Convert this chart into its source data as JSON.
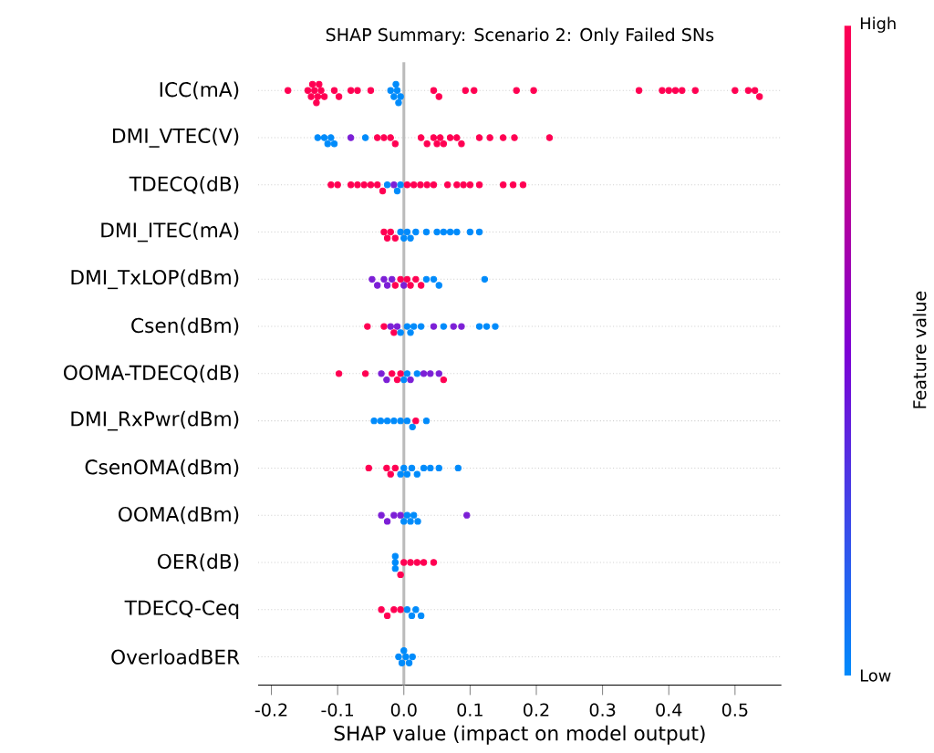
{
  "chart_data": {
    "type": "scatter",
    "orientation": "horizontal",
    "title": "SHAP Summary: Scenario 2: Only Failed SNs",
    "xlabel": "SHAP value (impact on model output)",
    "clabel": "Feature value",
    "categories": [
      "ICC(mA)",
      "DMI_VTEC(V)",
      "TDECQ(dB)",
      "DMI_ITEC(mA)",
      "DMI_TxLOP(dBm)",
      "Csen(dBm)",
      "OOMA-TDECQ(dB)",
      "DMI_RxPwr(dBm)",
      "CsenOMA(dBm)",
      "OOMA(dBm)",
      "OER(dB)",
      "TDECQ-Ceq",
      "OverloadBER"
    ],
    "xlim": [
      -0.22,
      0.57
    ],
    "xticks": [
      -0.2,
      -0.1,
      {
        "value": 0,
        "label": "0.0"
      },
      0.1,
      0.2,
      0.3,
      0.4,
      0.5
    ],
    "annotations": [
      "High",
      "Low"
    ],
    "grid": "y",
    "marker": "circle",
    "ref_lines": [
      {
        "axis": "x",
        "value": 0
      }
    ],
    "series": [
      {
        "x": [
          "ICC(mA)",
          "ICC(mA)",
          "ICC(mA)",
          "ICC(mA)",
          "ICC(mA)",
          "ICC(mA)",
          "ICC(mA)",
          "ICC(mA)",
          "ICC(mA)",
          "ICC(mA)",
          "ICC(mA)",
          "ICC(mA)",
          "ICC(mA)",
          "ICC(mA)",
          "ICC(mA)",
          "ICC(mA)",
          "ICC(mA)",
          "ICC(mA)",
          "ICC(mA)",
          "ICC(mA)",
          "ICC(mA)",
          "ICC(mA)",
          "ICC(mA)",
          "ICC(mA)",
          "ICC(mA)",
          "ICC(mA)",
          "ICC(mA)",
          "ICC(mA)",
          "ICC(mA)",
          "ICC(mA)",
          "ICC(mA)",
          "ICC(mA)",
          "ICC(mA)",
          "ICC(mA)",
          "ICC(mA)",
          "ICC(mA)",
          "ICC(mA)"
        ],
        "values": [
          -0.175,
          -0.145,
          -0.14,
          -0.138,
          -0.135,
          -0.132,
          -0.13,
          -0.128,
          -0.125,
          -0.12,
          -0.105,
          -0.098,
          -0.08,
          -0.07,
          -0.05,
          -0.02,
          -0.015,
          -0.012,
          -0.01,
          -0.008,
          -0.005,
          0.045,
          0.053,
          0.093,
          0.106,
          0.17,
          0.196,
          0.355,
          0.39,
          0.4,
          0.41,
          0.42,
          0.44,
          0.5,
          0.52,
          0.53,
          0.537
        ],
        "colors": [
          "#ff0052",
          "#ff0052",
          "#ff0052",
          "#ff0052",
          "#ff0052",
          "#ff0052",
          "#ff0052",
          "#ff0052",
          "#ff0052",
          "#ff0052",
          "#ff0052",
          "#ff0052",
          "#ff0052",
          "#ff0052",
          "#ff0052",
          "#008bfb",
          "#008bfb",
          "#008bfb",
          "#008bfb",
          "#008bfb",
          "#008bfb",
          "#ff0052",
          "#ff0052",
          "#ff0052",
          "#ff0052",
          "#ff0052",
          "#ff0052",
          "#ff0052",
          "#ff0052",
          "#ff0052",
          "#ff0052",
          "#ff0052",
          "#ff0052",
          "#ff0052",
          "#ff0052",
          "#ff0052",
          "#ff0052"
        ]
      },
      {
        "x": [
          "DMI_VTEC(V)",
          "DMI_VTEC(V)",
          "DMI_VTEC(V)",
          "DMI_VTEC(V)",
          "DMI_VTEC(V)",
          "DMI_VTEC(V)",
          "DMI_VTEC(V)",
          "DMI_VTEC(V)",
          "DMI_VTEC(V)",
          "DMI_VTEC(V)",
          "DMI_VTEC(V)",
          "DMI_VTEC(V)",
          "DMI_VTEC(V)",
          "DMI_VTEC(V)",
          "DMI_VTEC(V)",
          "DMI_VTEC(V)",
          "DMI_VTEC(V)",
          "DMI_VTEC(V)",
          "DMI_VTEC(V)",
          "DMI_VTEC(V)",
          "DMI_VTEC(V)",
          "DMI_VTEC(V)",
          "DMI_VTEC(V)",
          "DMI_VTEC(V)",
          "DMI_VTEC(V)"
        ],
        "values": [
          -0.13,
          -0.12,
          -0.115,
          -0.11,
          -0.105,
          -0.08,
          -0.058,
          -0.04,
          -0.03,
          -0.02,
          -0.013,
          0.026,
          0.035,
          0.045,
          0.05,
          0.055,
          0.06,
          0.07,
          0.08,
          0.087,
          0.114,
          0.13,
          0.15,
          0.167,
          0.22
        ],
        "colors": [
          "#008bfb",
          "#008bfb",
          "#008bfb",
          "#008bfb",
          "#008bfb",
          "#7c1fd6",
          "#008bfb",
          "#ff0052",
          "#ff0052",
          "#ff0052",
          "#ff0052",
          "#ff0052",
          "#ff0052",
          "#ff0052",
          "#ff0052",
          "#ff0052",
          "#ff0052",
          "#ff0052",
          "#ff0052",
          "#ff0052",
          "#ff0052",
          "#ff0052",
          "#ff0052",
          "#ff0052",
          "#ff0052"
        ]
      },
      {
        "x": [
          "TDECQ(dB)",
          "TDECQ(dB)",
          "TDECQ(dB)",
          "TDECQ(dB)",
          "TDECQ(dB)",
          "TDECQ(dB)",
          "TDECQ(dB)",
          "TDECQ(dB)",
          "TDECQ(dB)",
          "TDECQ(dB)",
          "TDECQ(dB)",
          "TDECQ(dB)",
          "TDECQ(dB)",
          "TDECQ(dB)",
          "TDECQ(dB)",
          "TDECQ(dB)",
          "TDECQ(dB)",
          "TDECQ(dB)",
          "TDECQ(dB)",
          "TDECQ(dB)",
          "TDECQ(dB)",
          "TDECQ(dB)",
          "TDECQ(dB)",
          "TDECQ(dB)",
          "TDECQ(dB)"
        ],
        "values": [
          -0.11,
          -0.1,
          -0.08,
          -0.07,
          -0.06,
          -0.05,
          -0.04,
          -0.032,
          -0.025,
          -0.015,
          -0.01,
          -0.005,
          0.005,
          0.015,
          0.025,
          0.035,
          0.045,
          0.066,
          0.08,
          0.09,
          0.1,
          0.114,
          0.15,
          0.165,
          0.18
        ],
        "colors": [
          "#ff0052",
          "#ff0052",
          "#ff0052",
          "#ff0052",
          "#ff0052",
          "#ff0052",
          "#ff0052",
          "#ff0052",
          "#008bfb",
          "#7c1fd6",
          "#008bfb",
          "#008bfb",
          "#ff0052",
          "#ff0052",
          "#ff0052",
          "#ff0052",
          "#ff0052",
          "#ff0052",
          "#ff0052",
          "#ff0052",
          "#ff0052",
          "#ff0052",
          "#ff0052",
          "#ff0052",
          "#ff0052"
        ]
      },
      {
        "x": [
          "DMI_ITEC(mA)",
          "DMI_ITEC(mA)",
          "DMI_ITEC(mA)",
          "DMI_ITEC(mA)",
          "DMI_ITEC(mA)",
          "DMI_ITEC(mA)",
          "DMI_ITEC(mA)",
          "DMI_ITEC(mA)",
          "DMI_ITEC(mA)",
          "DMI_ITEC(mA)",
          "DMI_ITEC(mA)",
          "DMI_ITEC(mA)",
          "DMI_ITEC(mA)",
          "DMI_ITEC(mA)",
          "DMI_ITEC(mA)",
          "DMI_ITEC(mA)"
        ],
        "values": [
          -0.03,
          -0.025,
          -0.02,
          -0.013,
          -0.005,
          0.0,
          0.005,
          0.01,
          0.018,
          0.034,
          0.05,
          0.06,
          0.07,
          0.08,
          0.1,
          0.114
        ],
        "colors": [
          "#ff0052",
          "#ff0052",
          "#ff0052",
          "#ff0052",
          "#008bfb",
          "#008bfb",
          "#008bfb",
          "#008bfb",
          "#008bfb",
          "#008bfb",
          "#008bfb",
          "#008bfb",
          "#008bfb",
          "#008bfb",
          "#008bfb",
          "#008bfb"
        ]
      },
      {
        "x": [
          "DMI_TxLOP(dBm)",
          "DMI_TxLOP(dBm)",
          "DMI_TxLOP(dBm)",
          "DMI_TxLOP(dBm)",
          "DMI_TxLOP(dBm)",
          "DMI_TxLOP(dBm)",
          "DMI_TxLOP(dBm)",
          "DMI_TxLOP(dBm)",
          "DMI_TxLOP(dBm)",
          "DMI_TxLOP(dBm)",
          "DMI_TxLOP(dBm)",
          "DMI_TxLOP(dBm)",
          "DMI_TxLOP(dBm)",
          "DMI_TxLOP(dBm)",
          "DMI_TxLOP(dBm)",
          "DMI_TxLOP(dBm)"
        ],
        "values": [
          -0.048,
          -0.04,
          -0.03,
          -0.025,
          -0.018,
          -0.013,
          -0.005,
          0.0,
          0.005,
          0.01,
          0.018,
          0.026,
          0.034,
          0.045,
          0.053,
          0.122
        ],
        "colors": [
          "#7c1fd6",
          "#7c1fd6",
          "#7c1fd6",
          "#7c1fd6",
          "#7c1fd6",
          "#ff0052",
          "#ff0052",
          "#7c1fd6",
          "#ff0052",
          "#ff0052",
          "#ff0052",
          "#ff0052",
          "#008bfb",
          "#008bfb",
          "#008bfb",
          "#008bfb"
        ]
      },
      {
        "x": [
          "Csen(dBm)",
          "Csen(dBm)",
          "Csen(dBm)",
          "Csen(dBm)",
          "Csen(dBm)",
          "Csen(dBm)",
          "Csen(dBm)",
          "Csen(dBm)",
          "Csen(dBm)",
          "Csen(dBm)",
          "Csen(dBm)",
          "Csen(dBm)",
          "Csen(dBm)",
          "Csen(dBm)",
          "Csen(dBm)",
          "Csen(dBm)",
          "Csen(dBm)"
        ],
        "values": [
          -0.055,
          -0.03,
          -0.02,
          -0.015,
          -0.01,
          -0.005,
          0.005,
          0.01,
          0.015,
          0.026,
          0.045,
          0.06,
          0.075,
          0.087,
          0.114,
          0.125,
          0.138
        ],
        "colors": [
          "#ff0052",
          "#ff0052",
          "#7c1fd6",
          "#ff0052",
          "#7c1fd6",
          "#008bfb",
          "#008bfb",
          "#008bfb",
          "#008bfb",
          "#008bfb",
          "#7c1fd6",
          "#008bfb",
          "#7c1fd6",
          "#7c1fd6",
          "#008bfb",
          "#008bfb",
          "#008bfb"
        ]
      },
      {
        "x": [
          "OOMA-TDECQ(dB)",
          "OOMA-TDECQ(dB)",
          "OOMA-TDECQ(dB)",
          "OOMA-TDECQ(dB)",
          "OOMA-TDECQ(dB)",
          "OOMA-TDECQ(dB)",
          "OOMA-TDECQ(dB)",
          "OOMA-TDECQ(dB)",
          "OOMA-TDECQ(dB)",
          "OOMA-TDECQ(dB)",
          "OOMA-TDECQ(dB)",
          "OOMA-TDECQ(dB)",
          "OOMA-TDECQ(dB)",
          "OOMA-TDECQ(dB)",
          "OOMA-TDECQ(dB)"
        ],
        "values": [
          -0.098,
          -0.058,
          -0.034,
          -0.026,
          -0.018,
          -0.01,
          -0.005,
          0.0,
          0.005,
          0.01,
          0.02,
          0.03,
          0.04,
          0.053,
          0.06
        ],
        "colors": [
          "#ff0052",
          "#ff0052",
          "#7c1fd6",
          "#7c1fd6",
          "#ff0052",
          "#ff0052",
          "#ff0052",
          "#008bfb",
          "#008bfb",
          "#7c1fd6",
          "#008bfb",
          "#7c1fd6",
          "#7c1fd6",
          "#7c1fd6",
          "#ff0052"
        ]
      },
      {
        "x": [
          "DMI_RxPwr(dBm)",
          "DMI_RxPwr(dBm)",
          "DMI_RxPwr(dBm)",
          "DMI_RxPwr(dBm)",
          "DMI_RxPwr(dBm)",
          "DMI_RxPwr(dBm)",
          "DMI_RxPwr(dBm)",
          "DMI_RxPwr(dBm)",
          "DMI_RxPwr(dBm)"
        ],
        "values": [
          -0.045,
          -0.035,
          -0.025,
          -0.015,
          -0.005,
          0.005,
          0.013,
          0.018,
          0.034
        ],
        "colors": [
          "#008bfb",
          "#008bfb",
          "#008bfb",
          "#008bfb",
          "#008bfb",
          "#008bfb",
          "#008bfb",
          "#ff0052",
          "#008bfb"
        ]
      },
      {
        "x": [
          "CsenOMA(dBm)",
          "CsenOMA(dBm)",
          "CsenOMA(dBm)",
          "CsenOMA(dBm)",
          "CsenOMA(dBm)",
          "CsenOMA(dBm)",
          "CsenOMA(dBm)",
          "CsenOMA(dBm)",
          "CsenOMA(dBm)",
          "CsenOMA(dBm)",
          "CsenOMA(dBm)",
          "CsenOMA(dBm)",
          "CsenOMA(dBm)"
        ],
        "values": [
          -0.053,
          -0.026,
          -0.02,
          -0.013,
          -0.005,
          0.0,
          0.005,
          0.012,
          0.02,
          0.03,
          0.04,
          0.053,
          0.082
        ],
        "colors": [
          "#ff0052",
          "#ff0052",
          "#ff0052",
          "#ff0052",
          "#008bfb",
          "#008bfb",
          "#008bfb",
          "#008bfb",
          "#008bfb",
          "#008bfb",
          "#008bfb",
          "#008bfb",
          "#008bfb"
        ]
      },
      {
        "x": [
          "OOMA(dBm)",
          "OOMA(dBm)",
          "OOMA(dBm)",
          "OOMA(dBm)",
          "OOMA(dBm)",
          "OOMA(dBm)",
          "OOMA(dBm)",
          "OOMA(dBm)",
          "OOMA(dBm)",
          "OOMA(dBm)"
        ],
        "values": [
          -0.034,
          -0.025,
          -0.015,
          -0.005,
          0.0,
          0.005,
          0.01,
          0.015,
          0.021,
          0.095
        ],
        "colors": [
          "#7c1fd6",
          "#7c1fd6",
          "#7c1fd6",
          "#7c1fd6",
          "#008bfb",
          "#008bfb",
          "#008bfb",
          "#008bfb",
          "#008bfb",
          "#7c1fd6"
        ]
      },
      {
        "x": [
          "OER(dB)",
          "OER(dB)",
          "OER(dB)",
          "OER(dB)",
          "OER(dB)",
          "OER(dB)",
          "OER(dB)",
          "OER(dB)",
          "OER(dB)"
        ],
        "values": [
          -0.013,
          -0.013,
          -0.013,
          -0.005,
          0.0,
          0.01,
          0.02,
          0.03,
          0.045
        ],
        "colors": [
          "#008bfb",
          "#008bfb",
          "#008bfb",
          "#ff0052",
          "#ff0052",
          "#ff0052",
          "#ff0052",
          "#ff0052",
          "#ff0052"
        ]
      },
      {
        "x": [
          "TDECQ-Ceq",
          "TDECQ-Ceq",
          "TDECQ-Ceq",
          "TDECQ-Ceq",
          "TDECQ-Ceq",
          "TDECQ-Ceq",
          "TDECQ-Ceq",
          "TDECQ-Ceq"
        ],
        "values": [
          -0.034,
          -0.025,
          -0.015,
          -0.005,
          0.005,
          0.012,
          0.018,
          0.026
        ],
        "colors": [
          "#ff0052",
          "#ff0052",
          "#ff0052",
          "#ff0052",
          "#008bfb",
          "#008bfb",
          "#008bfb",
          "#008bfb"
        ]
      },
      {
        "x": [
          "OverloadBER",
          "OverloadBER",
          "OverloadBER",
          "OverloadBER",
          "OverloadBER",
          "OverloadBER"
        ],
        "values": [
          -0.008,
          -0.003,
          0.0,
          0.003,
          0.008,
          0.013
        ],
        "colors": [
          "#008bfb",
          "#008bfb",
          "#008bfb",
          "#008bfb",
          "#008bfb",
          "#008bfb"
        ]
      }
    ]
  }
}
